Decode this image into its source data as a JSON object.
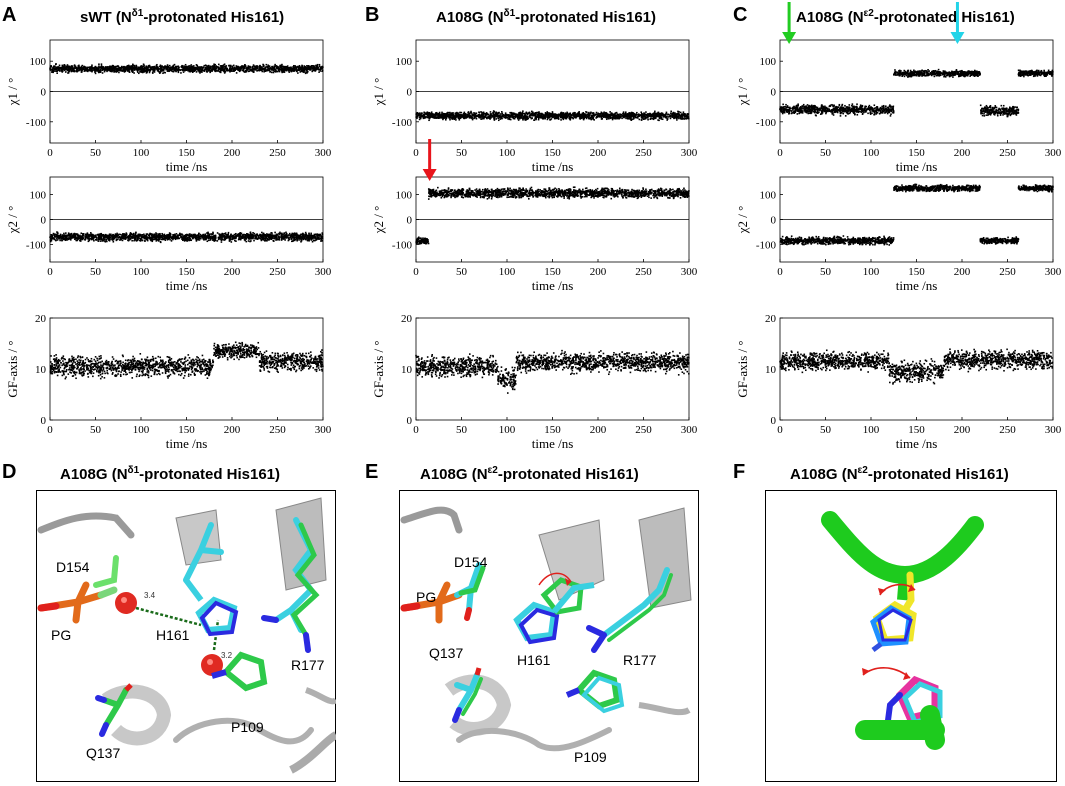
{
  "panels": {
    "A": {
      "label": "A",
      "title_main": "sWT (N",
      "title_sup": "δ1",
      "title_rest": "-protonated His161)"
    },
    "B": {
      "label": "B",
      "title_main": "A108G (N",
      "title_sup": "δ1",
      "title_rest": "-protonated His161)"
    },
    "C": {
      "label": "C",
      "title_main": "A108G (N",
      "title_sup": "ε2",
      "title_rest": "-protonated His161)"
    },
    "D": {
      "label": "D",
      "title_main": "A108G (N",
      "title_sup": "δ1",
      "title_rest": "-protonated His161)",
      "residues": [
        "D154",
        "PG",
        "H161",
        "R177",
        "P109",
        "Q137"
      ],
      "distances": [
        "3.4",
        "3.2"
      ]
    },
    "E": {
      "label": "E",
      "title_main": "A108G (N",
      "title_sup": "ε2",
      "title_rest": "-protonated His161)",
      "residues": [
        "PG",
        "D154",
        "H161",
        "R177",
        "Q137",
        "P109"
      ]
    },
    "F": {
      "label": "F",
      "title_main": "A108G (N",
      "title_sup": "ε2",
      "title_rest": "-protonated His161)"
    }
  },
  "chart_data": [
    {
      "id": "A-chi1",
      "type": "scatter",
      "xlabel": "time /ns",
      "ylabel": "χ1 / °",
      "xlim": [
        0,
        300
      ],
      "ylim": [
        -170,
        170
      ],
      "xticks": [
        0,
        50,
        100,
        150,
        200,
        250,
        300
      ],
      "yticks": [
        100,
        0,
        -100
      ],
      "zero_line": true,
      "series": [
        {
          "segments": [
            {
              "x": [
                0,
                300
              ],
              "y_mean": 75,
              "spread": 10
            }
          ]
        }
      ]
    },
    {
      "id": "A-chi2",
      "type": "scatter",
      "xlabel": "time /ns",
      "ylabel": "χ2 / °",
      "xlim": [
        0,
        300
      ],
      "ylim": [
        -170,
        170
      ],
      "xticks": [
        0,
        50,
        100,
        150,
        200,
        250,
        300
      ],
      "yticks": [
        100,
        0,
        -100
      ],
      "zero_line": true,
      "series": [
        {
          "segments": [
            {
              "x": [
                0,
                300
              ],
              "y_mean": -70,
              "spread": 13
            }
          ]
        }
      ]
    },
    {
      "id": "A-gf",
      "type": "scatter",
      "xlabel": "time /ns",
      "ylabel": "GF-axis / °",
      "xlim": [
        0,
        300
      ],
      "ylim": [
        0,
        20
      ],
      "xticks": [
        0,
        50,
        100,
        150,
        200,
        250,
        300
      ],
      "yticks": [
        0,
        10,
        20
      ],
      "zero_line": false,
      "series": [
        {
          "segments": [
            {
              "x": [
                0,
                180
              ],
              "y_mean": 10.5,
              "spread": 1.6
            },
            {
              "x": [
                180,
                230
              ],
              "y_mean": 13.5,
              "spread": 1.2
            },
            {
              "x": [
                230,
                300
              ],
              "y_mean": 11.5,
              "spread": 1.5
            }
          ]
        }
      ]
    },
    {
      "id": "B-chi1",
      "type": "scatter",
      "xlabel": "time /ns",
      "ylabel": "χ1 / °",
      "xlim": [
        0,
        300
      ],
      "ylim": [
        -170,
        170
      ],
      "xticks": [
        0,
        50,
        100,
        150,
        200,
        250,
        300
      ],
      "yticks": [
        100,
        0,
        -100
      ],
      "zero_line": true,
      "series": [
        {
          "segments": [
            {
              "x": [
                0,
                300
              ],
              "y_mean": -80,
              "spread": 10
            }
          ]
        }
      ]
    },
    {
      "id": "B-chi2",
      "type": "scatter",
      "xlabel": "time /ns",
      "ylabel": "χ2 / °",
      "xlim": [
        0,
        300
      ],
      "ylim": [
        -170,
        170
      ],
      "xticks": [
        0,
        50,
        100,
        150,
        200,
        250,
        300
      ],
      "yticks": [
        100,
        0,
        -100
      ],
      "zero_line": true,
      "series": [
        {
          "segments": [
            {
              "x": [
                0,
                14
              ],
              "y_mean": -85,
              "spread": 10
            },
            {
              "x": [
                14,
                300
              ],
              "y_mean": 105,
              "spread": 15
            }
          ]
        }
      ],
      "arrow": {
        "color": "#e8141b",
        "x": 15
      }
    },
    {
      "id": "B-gf",
      "type": "scatter",
      "xlabel": "time /ns",
      "ylabel": "GF-axis / °",
      "xlim": [
        0,
        300
      ],
      "ylim": [
        0,
        20
      ],
      "xticks": [
        0,
        50,
        100,
        150,
        200,
        250,
        300
      ],
      "yticks": [
        0,
        10,
        20
      ],
      "zero_line": false,
      "series": [
        {
          "segments": [
            {
              "x": [
                0,
                90
              ],
              "y_mean": 10.5,
              "spread": 1.6
            },
            {
              "x": [
                90,
                110
              ],
              "y_mean": 8.0,
              "spread": 1.8
            },
            {
              "x": [
                110,
                300
              ],
              "y_mean": 11.3,
              "spread": 1.5
            }
          ]
        }
      ]
    },
    {
      "id": "C-chi1",
      "type": "scatter",
      "xlabel": "time /ns",
      "ylabel": "χ1 / °",
      "xlim": [
        0,
        300
      ],
      "ylim": [
        -170,
        170
      ],
      "xticks": [
        0,
        50,
        100,
        150,
        200,
        250,
        300
      ],
      "yticks": [
        100,
        0,
        -100
      ],
      "zero_line": true,
      "series": [
        {
          "segments": [
            {
              "x": [
                0,
                125
              ],
              "y_mean": -60,
              "spread": 13
            },
            {
              "x": [
                125,
                220
              ],
              "y_mean": 60,
              "spread": 8
            },
            {
              "x": [
                220,
                262
              ],
              "y_mean": -65,
              "spread": 13
            },
            {
              "x": [
                262,
                300
              ],
              "y_mean": 60,
              "spread": 8
            }
          ]
        }
      ],
      "arrows": [
        {
          "color": "#22cc22",
          "x": 10
        },
        {
          "color": "#22d4e8",
          "x": 195
        }
      ]
    },
    {
      "id": "C-chi2",
      "type": "scatter",
      "xlabel": "time /ns",
      "ylabel": "χ2 / °",
      "xlim": [
        0,
        300
      ],
      "ylim": [
        -170,
        170
      ],
      "xticks": [
        0,
        50,
        100,
        150,
        200,
        250,
        300
      ],
      "yticks": [
        100,
        0,
        -100
      ],
      "zero_line": true,
      "series": [
        {
          "segments": [
            {
              "x": [
                0,
                125
              ],
              "y_mean": -85,
              "spread": 12
            },
            {
              "x": [
                125,
                220
              ],
              "y_mean": 125,
              "spread": 10
            },
            {
              "x": [
                220,
                262
              ],
              "y_mean": -85,
              "spread": 10
            },
            {
              "x": [
                262,
                300
              ],
              "y_mean": 125,
              "spread": 10
            }
          ]
        }
      ]
    },
    {
      "id": "C-gf",
      "type": "scatter",
      "xlabel": "time /ns",
      "ylabel": "GF-axis / °",
      "xlim": [
        0,
        300
      ],
      "ylim": [
        0,
        20
      ],
      "xticks": [
        0,
        50,
        100,
        150,
        200,
        250,
        300
      ],
      "yticks": [
        0,
        10,
        20
      ],
      "zero_line": false,
      "series": [
        {
          "segments": [
            {
              "x": [
                0,
                120
              ],
              "y_mean": 11.5,
              "spread": 1.4
            },
            {
              "x": [
                120,
                180
              ],
              "y_mean": 9.5,
              "spread": 1.6
            },
            {
              "x": [
                180,
                300
              ],
              "y_mean": 11.8,
              "spread": 1.5
            }
          ]
        }
      ]
    }
  ]
}
